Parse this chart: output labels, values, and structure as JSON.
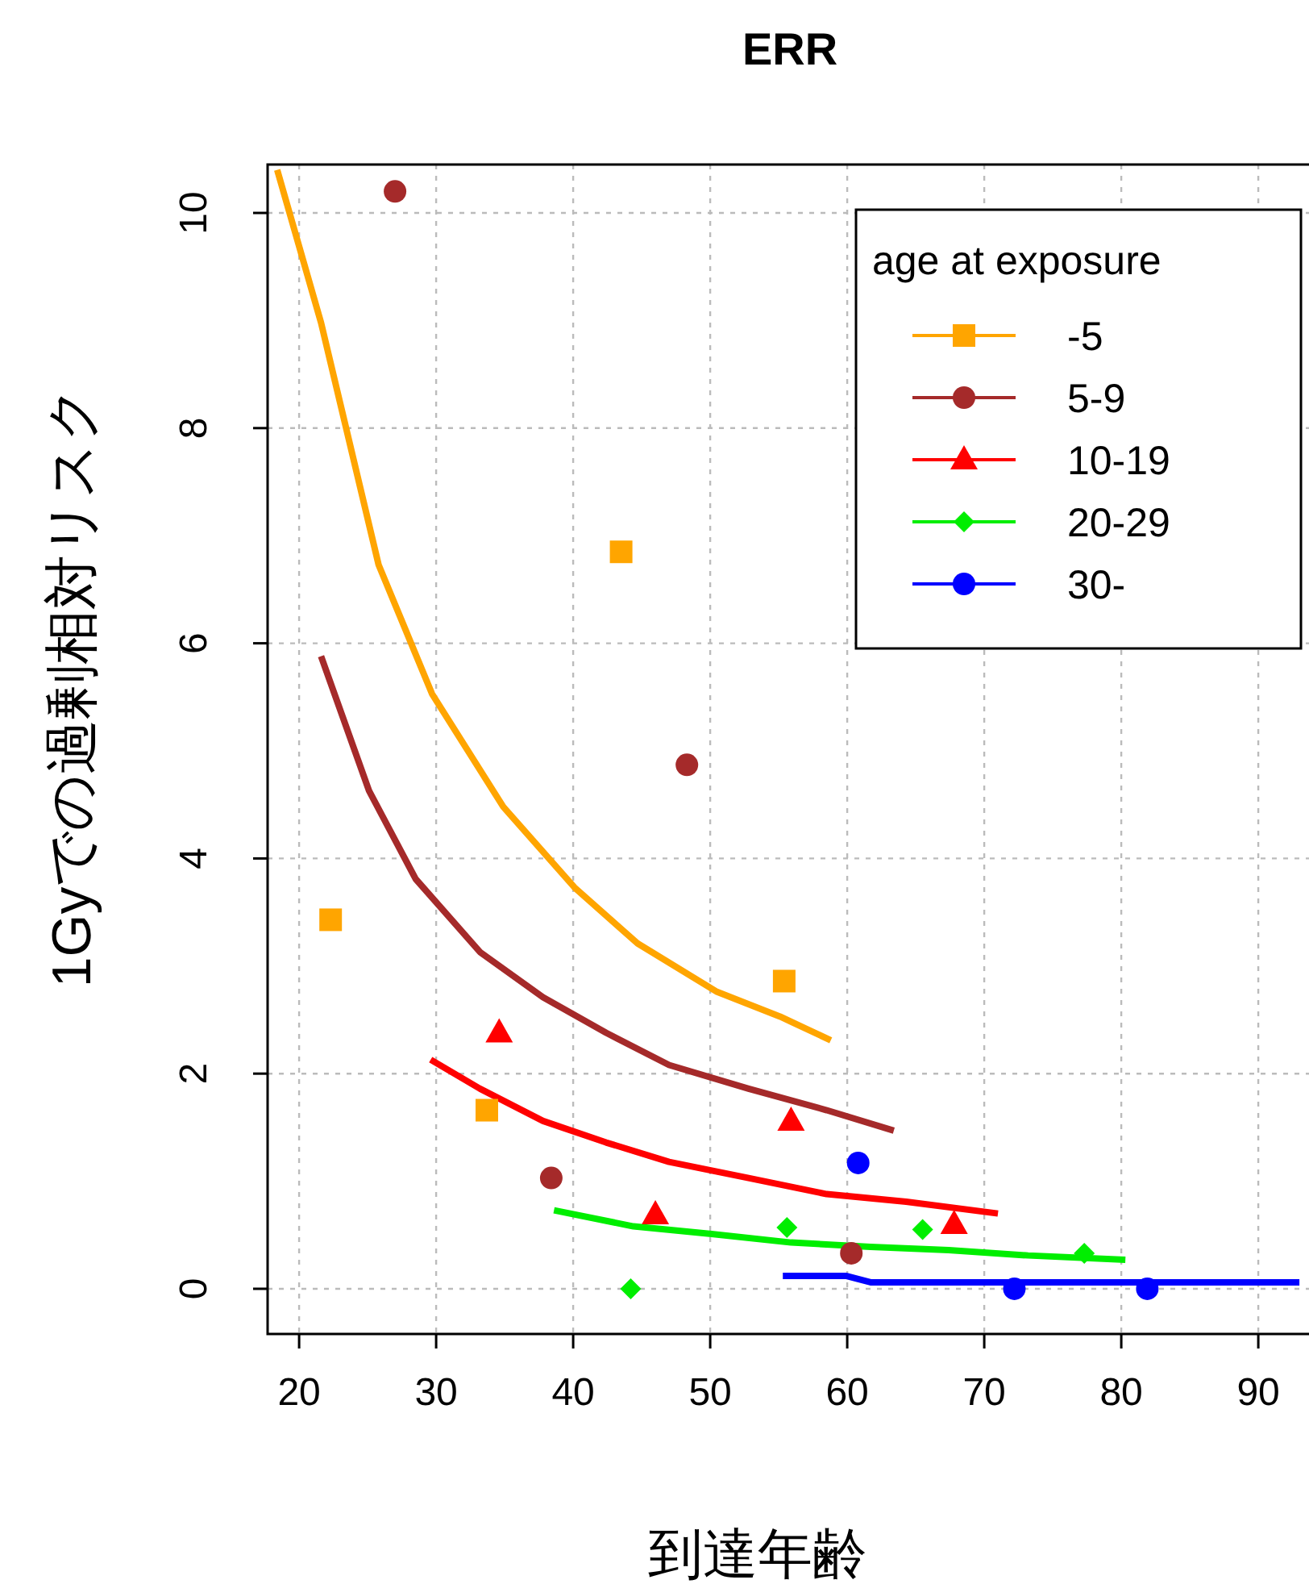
{
  "chart_data": {
    "type": "scatter",
    "title": "ERR",
    "xlabel": "到達年齢",
    "ylabel": "1Gyでの過剰相対リスク",
    "legend_title": "age at exposure",
    "legend": "top right",
    "grid": true,
    "xlim": [
      17.7,
      93.7
    ],
    "ylim": [
      -0.42,
      10.45
    ],
    "xticks": [
      20,
      30,
      40,
      50,
      60,
      70,
      80,
      90
    ],
    "yticks": [
      0,
      2,
      4,
      6,
      8,
      10
    ],
    "series": [
      {
        "name": "-5",
        "color": "#ffa500",
        "marker": "square",
        "x": [
          22.3,
          33.7,
          43.5,
          55.4
        ],
        "values": [
          3.43,
          1.66,
          6.85,
          2.86
        ]
      },
      {
        "name": "5-9",
        "color": "#a52a2a",
        "marker": "circle",
        "x": [
          27.0,
          38.4,
          48.3,
          60.3
        ],
        "values": [
          10.2,
          1.03,
          4.87,
          0.33
        ]
      },
      {
        "name": "10-19",
        "color": "#ff0000",
        "marker": "triangle",
        "x": [
          34.6,
          46.0,
          55.9,
          67.8
        ],
        "values": [
          2.38,
          0.69,
          1.56,
          0.6
        ]
      },
      {
        "name": "20-29",
        "color": "#00ee00",
        "marker": "diamond",
        "x": [
          44.2,
          55.6,
          65.5,
          77.3
        ],
        "values": [
          0,
          0.57,
          0.55,
          0.33
        ]
      },
      {
        "name": "30-",
        "color": "#0000ff",
        "marker": "circle",
        "x": [
          60.8,
          72.2,
          81.9
        ],
        "values": [
          1.17,
          0,
          0
        ]
      },
      {
        "type": "line",
        "color": "#ffa500",
        "line_style": "solid",
        "x": [
          18.4,
          21.6,
          25.8,
          29.7,
          34.9,
          40.1,
          44.7,
          50.5,
          55.1,
          58.8
        ],
        "values": [
          10.4,
          8.98,
          6.73,
          5.53,
          4.48,
          3.73,
          3.21,
          2.76,
          2.53,
          2.31
        ]
      },
      {
        "type": "line",
        "color": "#a52a2a",
        "line_style": "solid",
        "x": [
          21.6,
          25.1,
          28.5,
          33.2,
          37.8,
          42.4,
          47.0,
          52.8,
          58.5,
          63.4
        ],
        "values": [
          5.88,
          4.63,
          3.81,
          3.13,
          2.71,
          2.38,
          2.08,
          1.86,
          1.66,
          1.47
        ]
      },
      {
        "type": "line",
        "color": "#ff0000",
        "line_style": "solid",
        "x": [
          29.6,
          33.2,
          37.8,
          42.4,
          47.0,
          52.8,
          58.5,
          64.3,
          71.0
        ],
        "values": [
          2.13,
          1.86,
          1.56,
          1.36,
          1.18,
          1.03,
          0.88,
          0.81,
          0.7
        ]
      },
      {
        "type": "line",
        "color": "#00ee00",
        "line_style": "solid",
        "x": [
          38.6,
          44.4,
          50.1,
          55.9,
          61.7,
          67.4,
          73.2,
          80.3
        ],
        "values": [
          0.73,
          0.58,
          0.51,
          0.43,
          0.39,
          0.36,
          0.31,
          0.27
        ]
      },
      {
        "type": "line",
        "color": "#0000ff",
        "line_style": "solid",
        "x": [
          55.3,
          59.9,
          61.7,
          68.0,
          79.6,
          93.0
        ],
        "values": [
          0.12,
          0.12,
          0.06,
          0.06,
          0.06,
          0.06
        ]
      }
    ]
  }
}
